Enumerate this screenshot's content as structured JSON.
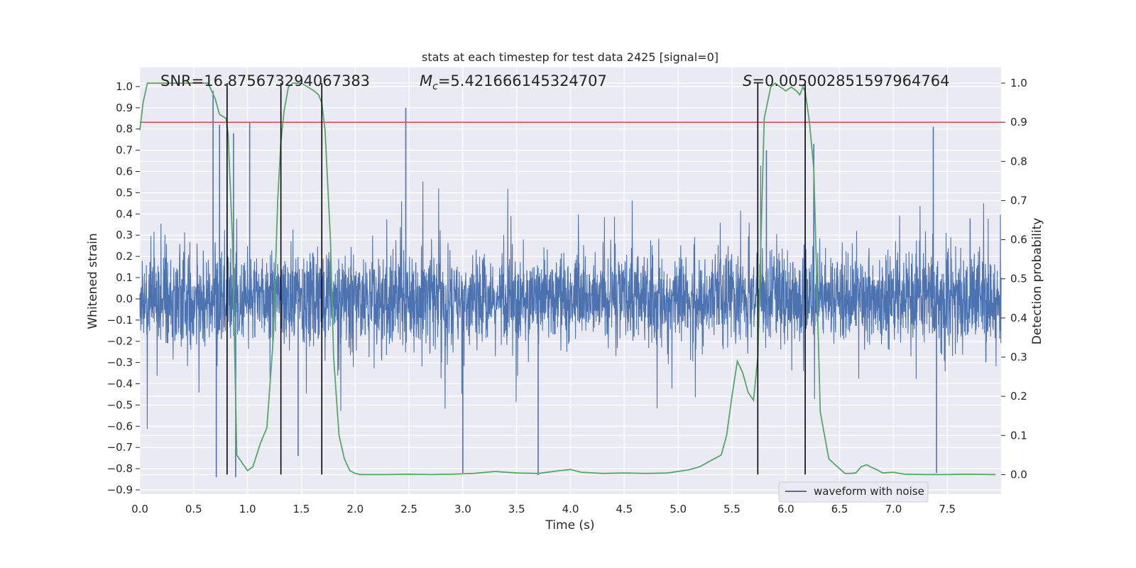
{
  "chart_data": {
    "type": "line",
    "title": "stats at each timestep for test data 2425 [signal=0]",
    "xlabel": "Time (s)",
    "ylabel": "Whitened strain",
    "ylabel_right": "Detection probability",
    "xlim": [
      0.0,
      8.0
    ],
    "ylim": [
      -0.92,
      1.09
    ],
    "ylim_right": [
      -0.05,
      1.04
    ],
    "x_ticks": [
      0.0,
      0.5,
      1.0,
      1.5,
      2.0,
      2.5,
      3.0,
      3.5,
      4.0,
      4.5,
      5.0,
      5.5,
      6.0,
      6.5,
      7.0,
      7.5
    ],
    "x_tick_labels": [
      "0.0",
      "0.5",
      "1.0",
      "1.5",
      "2.0",
      "2.5",
      "3.0",
      "3.5",
      "4.0",
      "4.5",
      "5.0",
      "5.5",
      "6.0",
      "6.5",
      "7.0",
      "7.5"
    ],
    "y_ticks": [
      1.0,
      0.9,
      0.8,
      0.7,
      0.6,
      0.5,
      0.4,
      0.3,
      0.2,
      0.1,
      0.0,
      -0.1,
      -0.2,
      -0.3,
      -0.4,
      -0.5,
      -0.6,
      -0.7,
      -0.8,
      -0.9
    ],
    "y_tick_labels": [
      "1.0",
      "0.9",
      "0.8",
      "0.7",
      "0.6",
      "0.5",
      "0.4",
      "0.3",
      "0.2",
      "0.1",
      "0.0",
      "−0.1",
      "−0.2",
      "−0.3",
      "−0.4",
      "−0.5",
      "−0.6",
      "−0.7",
      "−0.8",
      "−0.9"
    ],
    "y_right_ticks": [
      1.0,
      0.9,
      0.8,
      0.7,
      0.6,
      0.5,
      0.4,
      0.3,
      0.2,
      0.1,
      0.0
    ],
    "y_right_tick_labels": [
      "1.0",
      "0.9",
      "0.8",
      "0.7",
      "0.6",
      "0.5",
      "0.4",
      "0.3",
      "0.2",
      "0.1",
      "0.0"
    ],
    "grid": true,
    "legend": {
      "placement": "lower-right",
      "entries": [
        "waveform with noise"
      ]
    },
    "annotations": {
      "snr": "SNR=16.875673294067383",
      "mc_symbol": "M",
      "mc_sub": "c",
      "mc_value": "=5.421666145324707",
      "s_symbol": "S",
      "s_value": "=0.005002851597964764"
    },
    "threshold_right": 0.9,
    "vlines_x": [
      0.81,
      1.31,
      1.69,
      5.74,
      6.18
    ],
    "series": [
      {
        "name": "waveform with noise",
        "color": "#4c72b0",
        "type": "noise",
        "x_range": [
          0.0,
          8.0
        ],
        "typical_envelope": [
          -0.3,
          0.3
        ],
        "spikes": [
          {
            "x": 0.68,
            "y": 0.98
          },
          {
            "x": 0.74,
            "y": 0.82
          },
          {
            "x": 0.87,
            "y": 0.78
          },
          {
            "x": 1.02,
            "y": 0.83
          },
          {
            "x": 2.47,
            "y": 0.9
          },
          {
            "x": 3.0,
            "y": -0.82
          },
          {
            "x": 3.7,
            "y": -0.83
          },
          {
            "x": 7.37,
            "y": 0.81
          },
          {
            "x": 7.4,
            "y": -0.82
          },
          {
            "x": 0.71,
            "y": -0.84
          },
          {
            "x": 0.89,
            "y": -0.84
          },
          {
            "x": 1.47,
            "y": -0.74
          },
          {
            "x": 5.82,
            "y": 0.7
          },
          {
            "x": 6.26,
            "y": 0.73
          }
        ]
      },
      {
        "name": "detection probability",
        "color": "#55a868",
        "axis": "right",
        "x": [
          0.0,
          0.03,
          0.07,
          0.1,
          0.15,
          0.2,
          0.3,
          0.4,
          0.5,
          0.6,
          0.63,
          0.65,
          0.7,
          0.74,
          0.8,
          0.82,
          0.86,
          0.9,
          0.95,
          1.0,
          1.05,
          1.12,
          1.18,
          1.24,
          1.28,
          1.31,
          1.34,
          1.38,
          1.42,
          1.46,
          1.5,
          1.56,
          1.62,
          1.66,
          1.69,
          1.72,
          1.77,
          1.8,
          1.85,
          1.9,
          1.95,
          2.0,
          2.05,
          2.1,
          2.3,
          2.5,
          2.7,
          2.9,
          3.1,
          3.3,
          3.5,
          3.7,
          3.9,
          4.0,
          4.1,
          4.3,
          4.5,
          4.7,
          4.9,
          5.1,
          5.2,
          5.3,
          5.4,
          5.45,
          5.5,
          5.55,
          5.6,
          5.65,
          5.7,
          5.74,
          5.8,
          5.86,
          5.9,
          5.95,
          6.0,
          6.05,
          6.1,
          6.13,
          6.16,
          6.18,
          6.22,
          6.26,
          6.32,
          6.4,
          6.48,
          6.55,
          6.6,
          6.65,
          6.7,
          6.75,
          6.8,
          6.85,
          6.9,
          7.0,
          7.1,
          7.3,
          7.5,
          7.7,
          7.95
        ],
        "y": [
          0.88,
          0.95,
          1.0,
          1.0,
          1.0,
          1.0,
          1.0,
          1.0,
          1.0,
          1.0,
          1.0,
          0.99,
          0.96,
          0.92,
          0.91,
          0.87,
          0.6,
          0.05,
          0.03,
          0.01,
          0.02,
          0.08,
          0.12,
          0.35,
          0.7,
          0.85,
          0.93,
          0.99,
          1.0,
          1.0,
          1.0,
          0.99,
          0.98,
          0.97,
          0.95,
          0.88,
          0.6,
          0.3,
          0.1,
          0.04,
          0.01,
          0.003,
          0.0,
          0.0,
          0.0,
          0.001,
          0.0,
          0.001,
          0.003,
          0.008,
          0.004,
          0.003,
          0.01,
          0.013,
          0.006,
          0.003,
          0.004,
          0.003,
          0.004,
          0.012,
          0.02,
          0.035,
          0.05,
          0.1,
          0.2,
          0.29,
          0.26,
          0.21,
          0.19,
          0.3,
          0.91,
          0.99,
          1.0,
          0.99,
          0.98,
          0.99,
          0.98,
          0.97,
          0.99,
          0.98,
          0.9,
          0.78,
          0.16,
          0.04,
          0.02,
          0.003,
          0.003,
          0.004,
          0.02,
          0.025,
          0.018,
          0.012,
          0.004,
          0.006,
          0.001,
          0.0,
          0.0,
          0.001,
          0.0
        ]
      }
    ]
  }
}
